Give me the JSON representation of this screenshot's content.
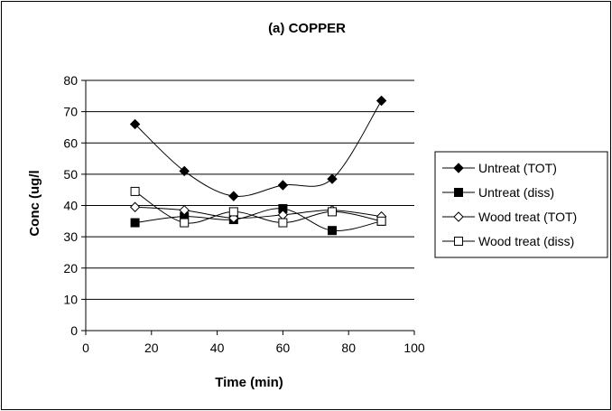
{
  "chart_data": {
    "type": "line",
    "title": "(a) COPPER",
    "xlabel": "Time (min)",
    "ylabel": "Conc (ug/l",
    "xlim": [
      0,
      100
    ],
    "ylim": [
      0,
      80
    ],
    "xticks": [
      0,
      20,
      40,
      60,
      80,
      100
    ],
    "yticks": [
      0,
      10,
      20,
      30,
      40,
      50,
      60,
      70,
      80
    ],
    "grid": "horizontal",
    "legend_position": "right",
    "series": [
      {
        "name": "Untreat (TOT)",
        "marker": "diamond-filled",
        "x": [
          15,
          30,
          45,
          60,
          75,
          90
        ],
        "y": [
          66,
          51,
          43,
          46.5,
          48.5,
          73.5
        ]
      },
      {
        "name": "Untreat (diss)",
        "marker": "square-filled",
        "x": [
          15,
          30,
          45,
          60,
          75,
          90
        ],
        "y": [
          34.5,
          36.5,
          35.5,
          39,
          32,
          35
        ]
      },
      {
        "name": "Wood treat (TOT)",
        "marker": "diamond-open",
        "x": [
          15,
          30,
          45,
          60,
          75,
          90
        ],
        "y": [
          39.5,
          38.5,
          36,
          37,
          38.5,
          36.5
        ]
      },
      {
        "name": "Wood treat (diss)",
        "marker": "square-open",
        "x": [
          15,
          30,
          45,
          60,
          75,
          90
        ],
        "y": [
          44.5,
          34.5,
          38,
          34.5,
          38,
          35
        ]
      }
    ]
  }
}
